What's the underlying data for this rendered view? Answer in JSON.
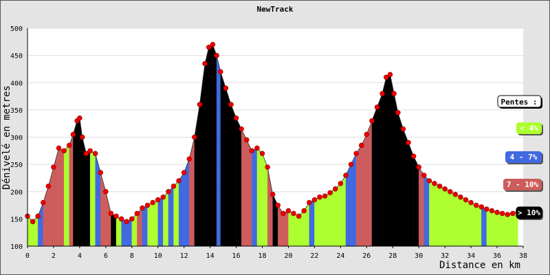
{
  "chart_data": {
    "type": "area",
    "title": "NewTrack",
    "xlabel": "Distance en km",
    "ylabel": "Dénivelé en metres",
    "xlim": [
      0,
      38
    ],
    "ylim": [
      100,
      500
    ],
    "x_ticks": [
      0,
      2,
      4,
      6,
      8,
      10,
      12,
      14,
      16,
      18,
      20,
      22,
      24,
      26,
      28,
      30,
      32,
      34,
      36,
      38
    ],
    "y_ticks": [
      100,
      150,
      200,
      250,
      300,
      350,
      400,
      450,
      500
    ],
    "grid": "horizontal",
    "legend_placement": "right",
    "legend": {
      "title": "Pentes :",
      "items": [
        {
          "label": "< 4%",
          "color": "#adff2f"
        },
        {
          "label": "4 - 7%",
          "color": "#4169e1"
        },
        {
          "label": "7 - 10%",
          "color": "#cd5c5c"
        },
        {
          "label": "> 10%",
          "color": "#000000"
        }
      ]
    },
    "x": [
      0,
      0.4,
      0.8,
      1.2,
      1.6,
      2.0,
      2.4,
      2.8,
      3.2,
      3.5,
      3.8,
      4.0,
      4.2,
      4.5,
      4.8,
      5.2,
      5.6,
      6.0,
      6.4,
      6.8,
      7.2,
      7.6,
      8.0,
      8.4,
      8.8,
      9.2,
      9.6,
      10.0,
      10.4,
      10.8,
      11.2,
      11.6,
      12.0,
      12.4,
      12.8,
      13.2,
      13.6,
      13.9,
      14.2,
      14.5,
      14.8,
      15.2,
      15.6,
      16.0,
      16.4,
      16.8,
      17.2,
      17.6,
      18.0,
      18.4,
      18.8,
      19.2,
      19.6,
      20.0,
      20.4,
      20.8,
      21.2,
      21.6,
      22.0,
      22.4,
      22.8,
      23.2,
      23.6,
      24.0,
      24.4,
      24.8,
      25.2,
      25.6,
      26.0,
      26.4,
      26.8,
      27.2,
      27.5,
      27.8,
      28.1,
      28.4,
      28.8,
      29.2,
      29.6,
      30.0,
      30.4,
      30.8,
      31.2,
      31.6,
      32.0,
      32.4,
      32.8,
      33.2,
      33.6,
      34.0,
      34.4,
      34.8,
      35.2,
      35.6,
      36.0,
      36.4,
      36.8,
      37.2,
      37.6
    ],
    "y": [
      155,
      145,
      155,
      180,
      210,
      245,
      280,
      275,
      285,
      305,
      330,
      335,
      300,
      270,
      275,
      270,
      235,
      200,
      160,
      155,
      150,
      145,
      150,
      160,
      170,
      175,
      180,
      185,
      190,
      200,
      210,
      220,
      235,
      260,
      300,
      360,
      435,
      465,
      470,
      450,
      420,
      390,
      360,
      335,
      315,
      295,
      275,
      280,
      270,
      245,
      195,
      175,
      160,
      165,
      160,
      155,
      165,
      180,
      185,
      190,
      192,
      198,
      205,
      215,
      230,
      250,
      270,
      285,
      305,
      330,
      355,
      380,
      410,
      415,
      380,
      345,
      315,
      290,
      265,
      245,
      230,
      220,
      215,
      210,
      205,
      200,
      195,
      190,
      185,
      180,
      175,
      172,
      168,
      165,
      162,
      160,
      158,
      160,
      163
    ],
    "slope_category": [
      0,
      0,
      1,
      2,
      2,
      2,
      2,
      0,
      2,
      3,
      3,
      3,
      3,
      3,
      0,
      1,
      2,
      2,
      3,
      0,
      1,
      1,
      0,
      2,
      1,
      0,
      0,
      1,
      0,
      1,
      0,
      1,
      1,
      2,
      3,
      3,
      3,
      3,
      3,
      1,
      3,
      3,
      3,
      3,
      2,
      2,
      1,
      0,
      0,
      2,
      3,
      2,
      2,
      0,
      0,
      0,
      0,
      1,
      0,
      0,
      0,
      0,
      0,
      0,
      1,
      1,
      2,
      2,
      2,
      3,
      3,
      3,
      3,
      3,
      3,
      3,
      3,
      3,
      3,
      2,
      1,
      0,
      0,
      0,
      0,
      0,
      0,
      0,
      0,
      0,
      0,
      1,
      0,
      0,
      0,
      0,
      0,
      0,
      0
    ]
  }
}
